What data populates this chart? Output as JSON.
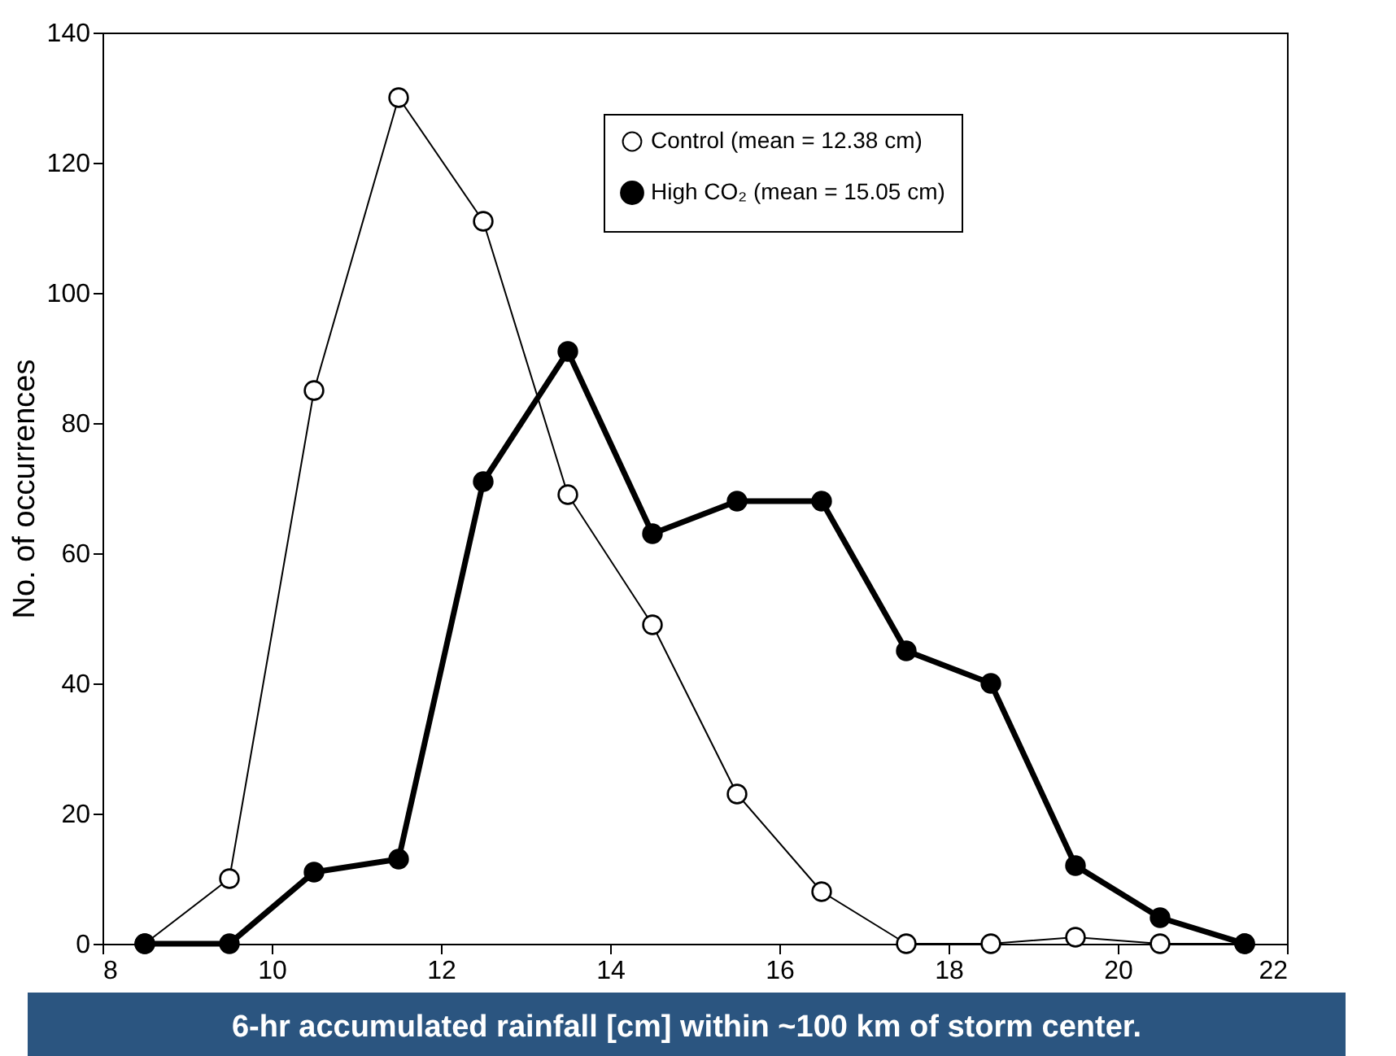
{
  "chart_data": {
    "type": "line",
    "ylabel": "No. of occurrences",
    "x": [
      8.5,
      9.5,
      10.5,
      11.5,
      12.5,
      13.5,
      14.5,
      15.5,
      16.5,
      17.5,
      18.5,
      19.5,
      20.5,
      21.5
    ],
    "series": [
      {
        "name": "Control (mean = 12.38 cm)",
        "color": "#000000",
        "values": [
          0,
          10,
          85,
          130,
          111,
          69,
          49,
          23,
          8,
          0,
          0,
          1,
          0,
          0
        ]
      },
      {
        "name": "High CO₂ (mean = 15.05 cm)",
        "color": "#000000",
        "values": [
          0,
          0,
          11,
          13,
          71,
          91,
          63,
          68,
          68,
          45,
          40,
          12,
          4,
          0
        ]
      }
    ],
    "xlim": [
      8,
      22
    ],
    "xticks": [
      8,
      10,
      12,
      14,
      16,
      18,
      20,
      22
    ],
    "ylim": [
      0,
      140
    ],
    "yticks": [
      0,
      20,
      40,
      60,
      80,
      100,
      120,
      140
    ],
    "grid": false,
    "legend": "top right",
    "marker": "circle",
    "annotations": [
      "6-hr accumulated rainfall [cm] within ~100 km of storm center."
    ]
  }
}
